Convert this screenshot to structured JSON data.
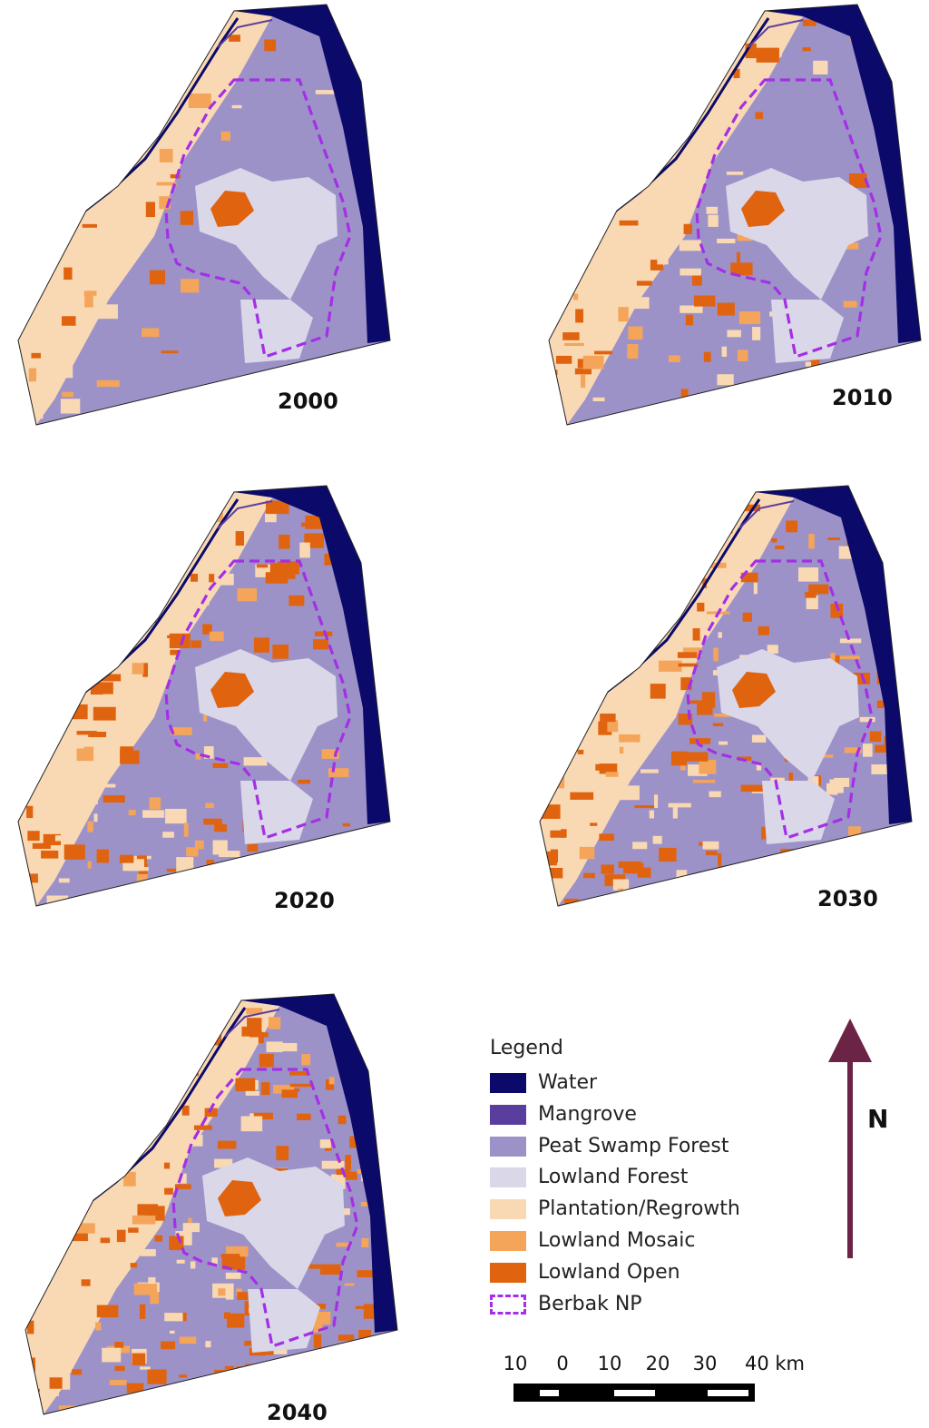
{
  "maps": [
    {
      "year": "2000"
    },
    {
      "year": "2010"
    },
    {
      "year": "2020"
    },
    {
      "year": "2030"
    },
    {
      "year": "2040"
    }
  ],
  "legend": {
    "title": "Legend",
    "items": [
      {
        "label": "Water",
        "color": "#0b0a6b"
      },
      {
        "label": "Mangrove",
        "color": "#5a3e9e"
      },
      {
        "label": "Peat Swamp Forest",
        "color": "#9d92c8"
      },
      {
        "label": "Lowland Forest",
        "color": "#d9d7e8"
      },
      {
        "label": "Plantation/Regrowth",
        "color": "#f9d9b3"
      },
      {
        "label": "Lowland Mosaic",
        "color": "#f4a55a"
      },
      {
        "label": "Lowland Open",
        "color": "#e0640f"
      },
      {
        "label": "Berbak NP",
        "color": "#a42fe6",
        "style": "dashed-outline"
      }
    ]
  },
  "north_arrow": {
    "label": "N",
    "color": "#6b2346"
  },
  "scale_bar": {
    "ticks": [
      "10",
      "0",
      "10",
      "20",
      "30",
      "40 km"
    ]
  }
}
